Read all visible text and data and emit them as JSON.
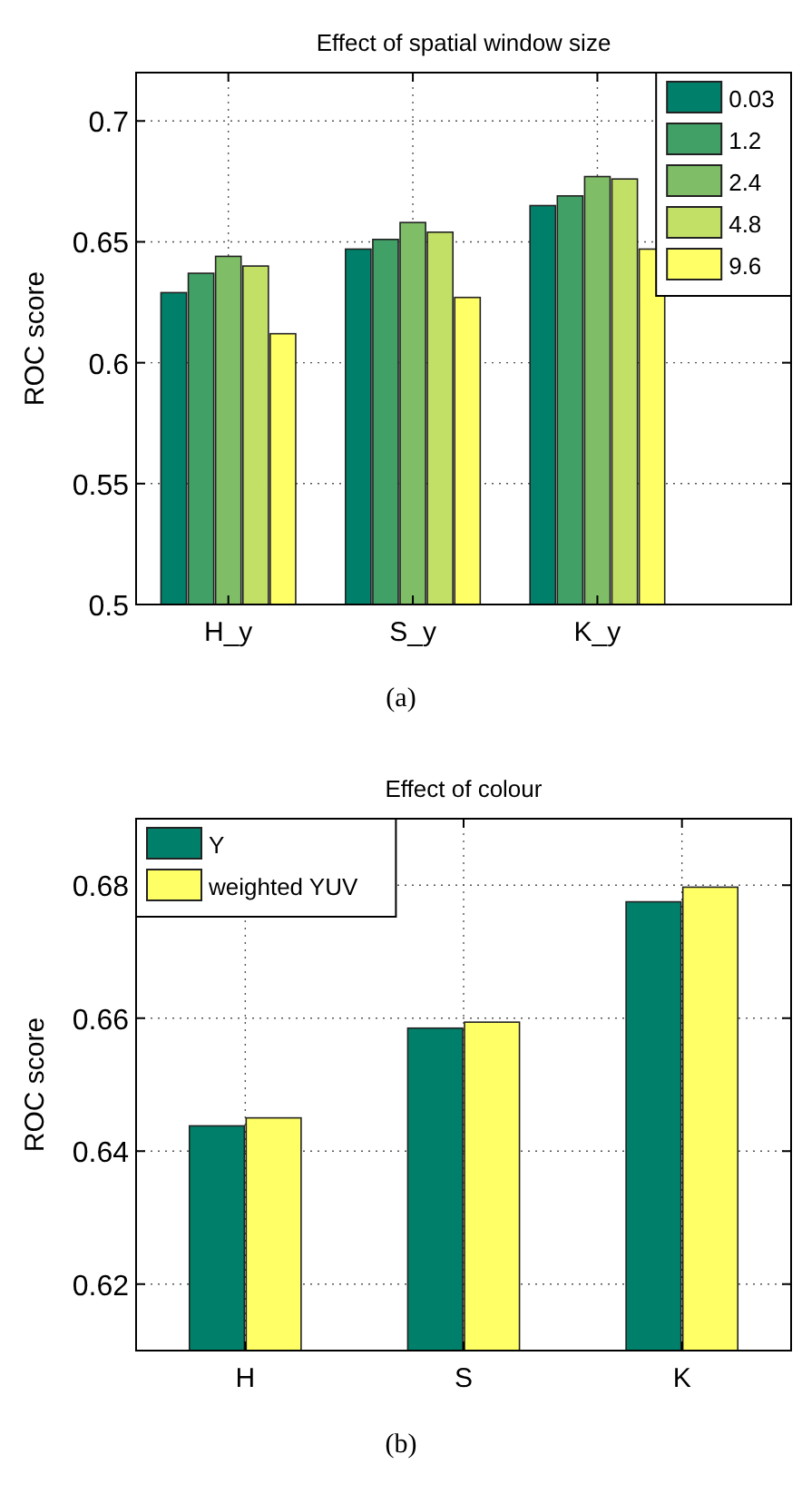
{
  "chart_data": [
    {
      "type": "bar",
      "title": "Effect of spatial window size",
      "ylabel": "ROC score",
      "categories": [
        "H_y",
        "S_y",
        "K_y"
      ],
      "series": [
        {
          "name": "0.03",
          "color": "#00806a",
          "values": [
            0.629,
            0.647,
            0.665
          ]
        },
        {
          "name": "1.2",
          "color": "#41a066",
          "values": [
            0.637,
            0.651,
            0.669
          ]
        },
        {
          "name": "2.4",
          "color": "#7fbe66",
          "values": [
            0.644,
            0.658,
            0.677
          ]
        },
        {
          "name": "4.8",
          "color": "#c2e066",
          "values": [
            0.64,
            0.654,
            0.676
          ]
        },
        {
          "name": "9.6",
          "color": "#ffff66",
          "values": [
            0.612,
            0.627,
            0.647
          ]
        }
      ],
      "ylim": [
        0.5,
        0.72
      ],
      "yticks": [
        0.5,
        0.55,
        0.6,
        0.65,
        0.7
      ],
      "grid": true,
      "legend": "top right",
      "annotations": [
        "(a)"
      ]
    },
    {
      "type": "bar",
      "title": "Effect of colour",
      "ylabel": "ROC score",
      "categories": [
        "H",
        "S",
        "K"
      ],
      "series": [
        {
          "name": "Y",
          "color": "#00806a",
          "values": [
            0.6438,
            0.6585,
            0.6775
          ]
        },
        {
          "name": "weighted YUV",
          "color": "#ffff66",
          "values": [
            0.645,
            0.6594,
            0.6797
          ]
        }
      ],
      "ylim": [
        0.61,
        0.69
      ],
      "yticks": [
        0.62,
        0.64,
        0.66,
        0.68
      ],
      "grid": true,
      "legend": "top left",
      "annotations": [
        "(b)"
      ]
    }
  ]
}
